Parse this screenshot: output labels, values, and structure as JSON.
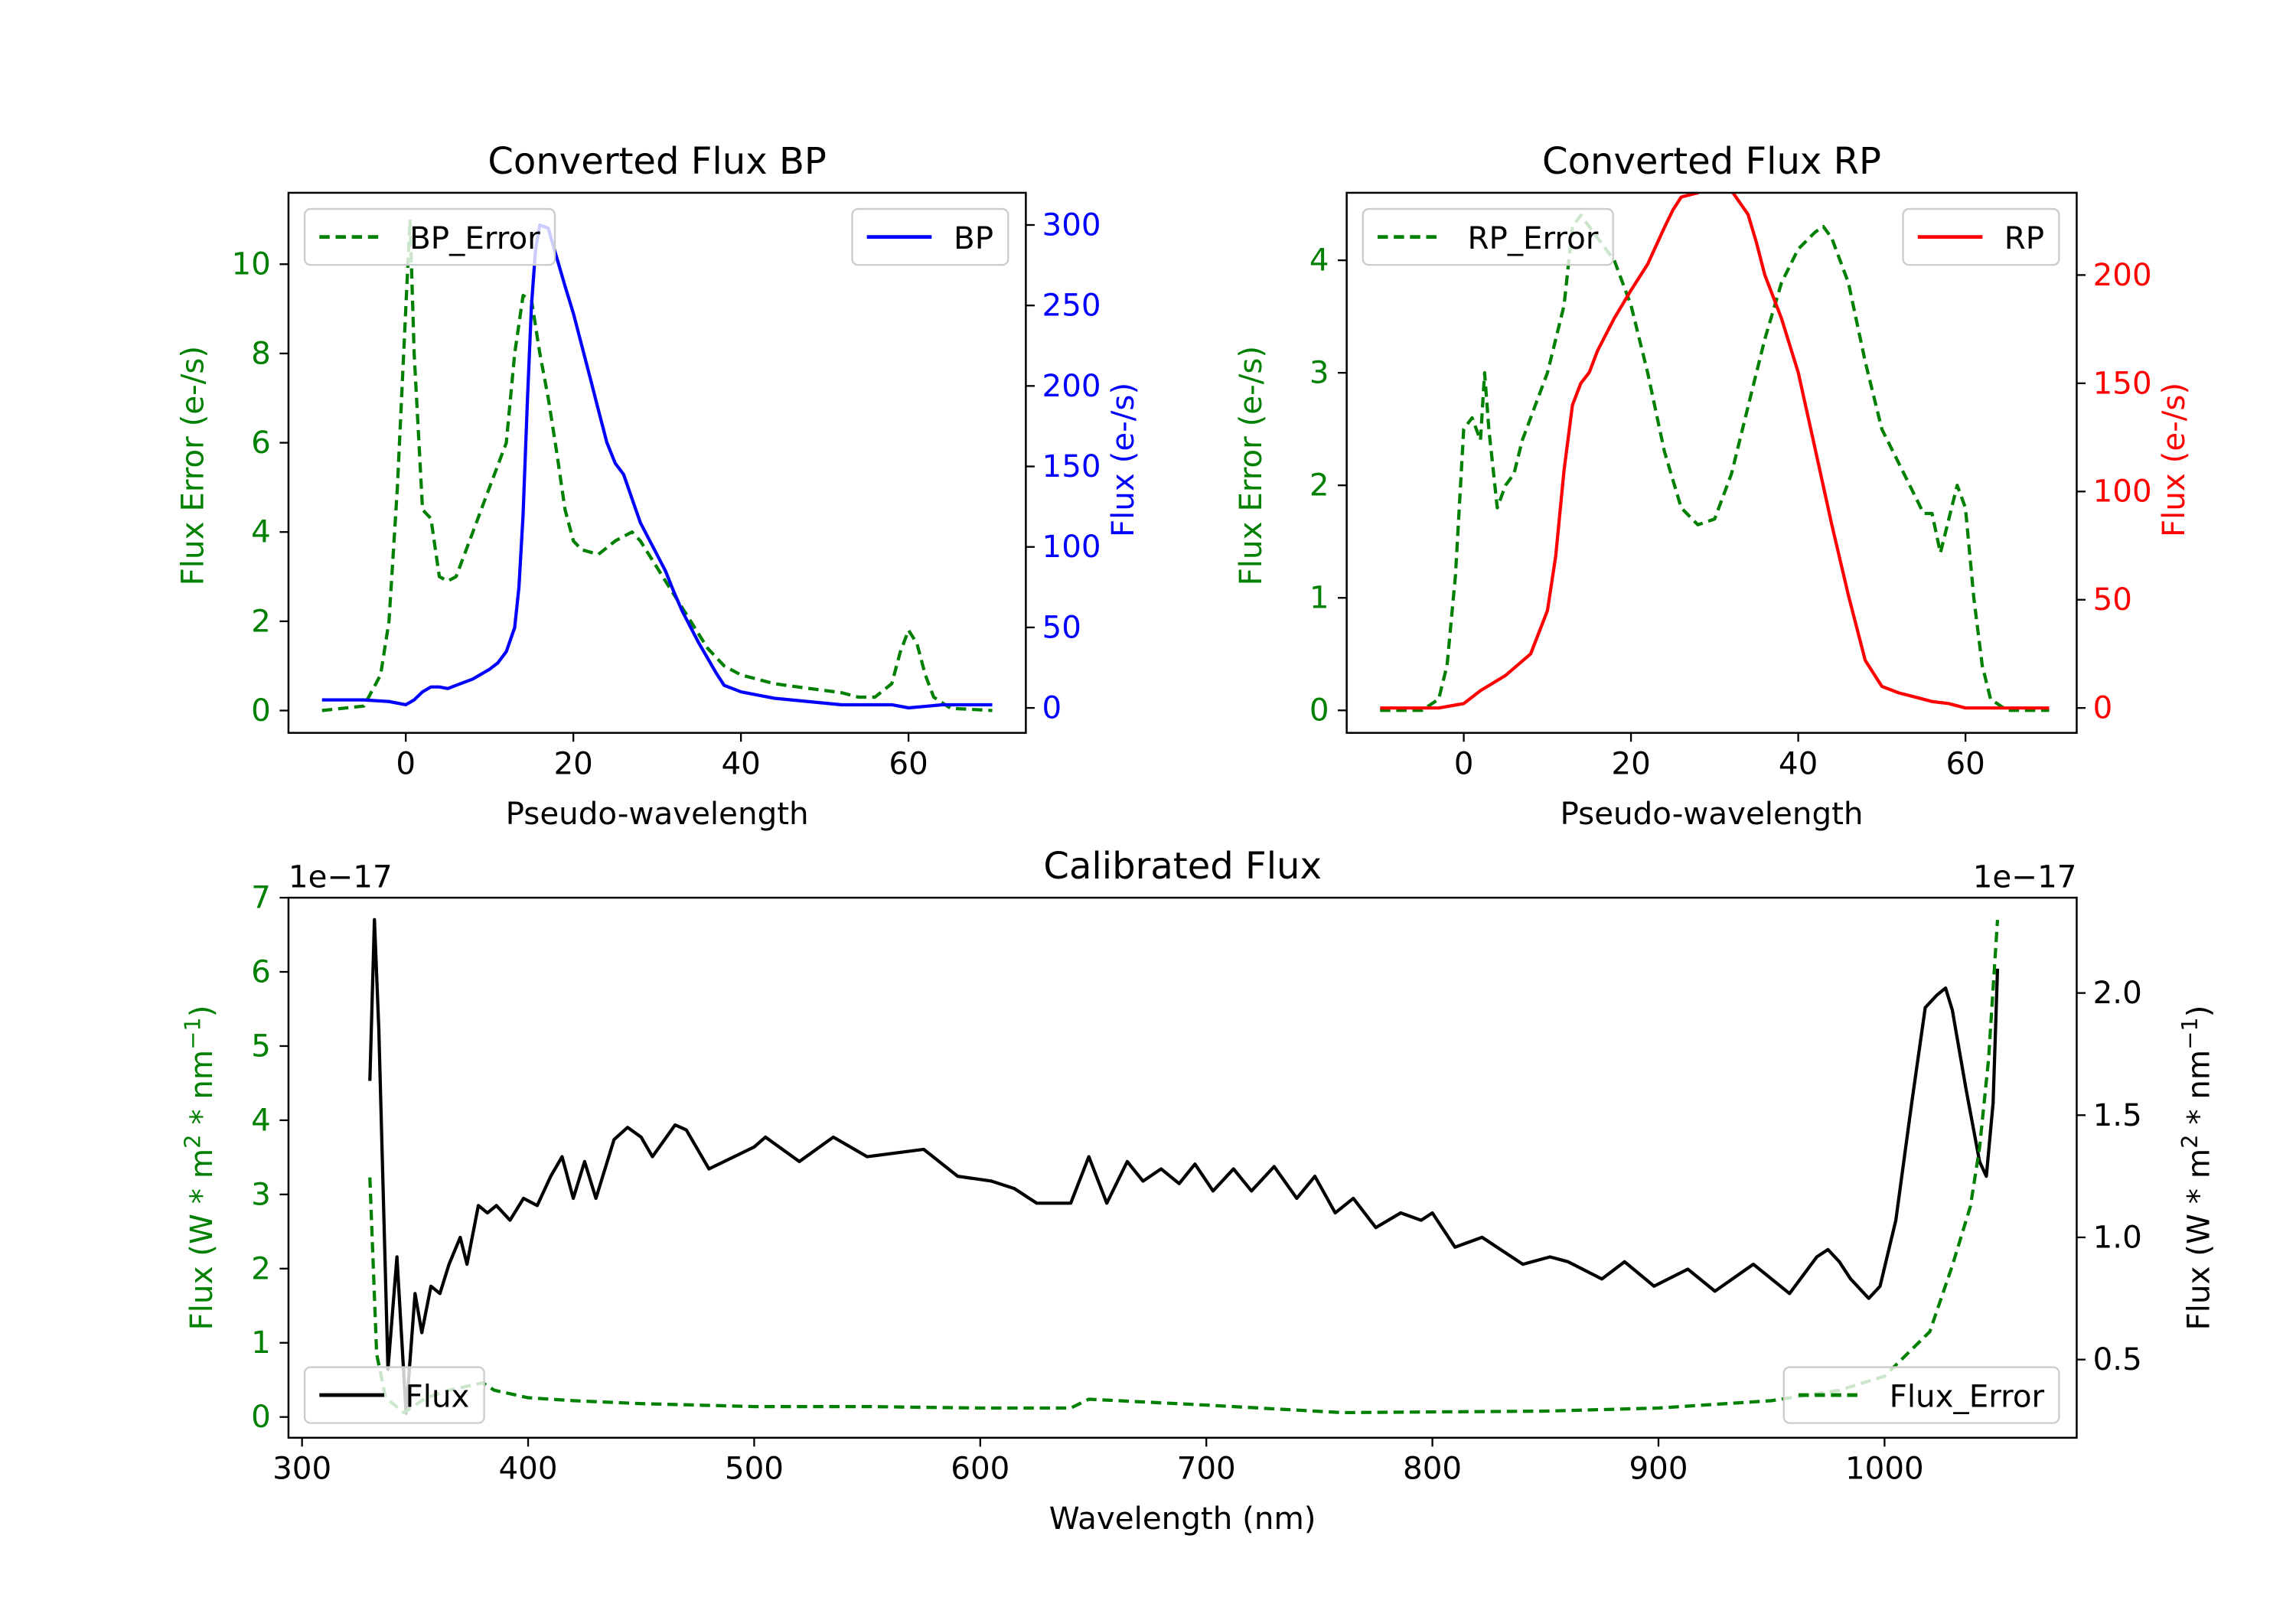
{
  "chart_data": [
    {
      "type": "line",
      "title": "Converted Flux BP",
      "xlabel": "Pseudo-wavelength",
      "ylabel": "Flux Error (e-/s)",
      "ylabel_right": "Flux (e-/s)",
      "xlim": [
        -14,
        74
      ],
      "ylim": [
        -0.5,
        11.6
      ],
      "ylim_right": [
        -15.5,
        320
      ],
      "xticks": [
        0,
        20,
        40,
        60
      ],
      "yticks": [
        0,
        2,
        4,
        6,
        8,
        10
      ],
      "yticks_right": [
        0,
        50,
        100,
        150,
        200,
        250,
        300
      ],
      "left_color": "#008000",
      "right_color": "#0000ff",
      "legend_left": {
        "label": "BP_Error",
        "placement": "upper left"
      },
      "legend_right": {
        "label": "BP",
        "placement": "upper right"
      },
      "series": [
        {
          "name": "BP_Error",
          "axis": "left",
          "color": "#008000",
          "style": "dashed",
          "x": [
            -10,
            -5,
            -3,
            -2,
            -1,
            0,
            0.5,
            1,
            2,
            3,
            4,
            5,
            6,
            8,
            10,
            12,
            13,
            14,
            15,
            16,
            17,
            18,
            19,
            20,
            21,
            23,
            25,
            27,
            28,
            30,
            32,
            34,
            36,
            38,
            40,
            42,
            44,
            46,
            48,
            50,
            52,
            54,
            56,
            58,
            59,
            60,
            61,
            62,
            63,
            65,
            70
          ],
          "y": [
            0,
            0.1,
            0.8,
            2,
            5,
            9,
            11,
            8,
            4.5,
            4.3,
            3,
            2.9,
            3,
            4,
            5,
            6,
            8,
            9.3,
            9.2,
            8,
            7,
            5.8,
            4.5,
            3.8,
            3.6,
            3.5,
            3.8,
            4,
            3.8,
            3.2,
            2.6,
            2,
            1.4,
            1,
            0.8,
            0.7,
            0.6,
            0.55,
            0.5,
            0.45,
            0.4,
            0.3,
            0.3,
            0.6,
            1.3,
            1.8,
            1.5,
            0.8,
            0.3,
            0.05,
            0
          ]
        },
        {
          "name": "BP",
          "axis": "right",
          "color": "#0000ff",
          "style": "solid",
          "x": [
            -10,
            -5,
            -2,
            0,
            1,
            2,
            3,
            4,
            5,
            6,
            8,
            10,
            11,
            12,
            13,
            13.5,
            14,
            14.5,
            15,
            15.5,
            16,
            17,
            18,
            19,
            20,
            21,
            22,
            23,
            24,
            25,
            26,
            27,
            28,
            30,
            31,
            32,
            33,
            35,
            37,
            38,
            40,
            42,
            44,
            46,
            48,
            50,
            52,
            54,
            56,
            58,
            60,
            62,
            64,
            70
          ],
          "y": [
            5,
            5,
            4,
            2,
            5,
            10,
            13,
            13,
            12,
            14,
            18,
            24,
            28,
            35,
            50,
            75,
            120,
            190,
            250,
            285,
            300,
            298,
            280,
            262,
            245,
            225,
            205,
            185,
            165,
            152,
            145,
            130,
            115,
            95,
            85,
            72,
            60,
            40,
            22,
            14,
            10,
            8,
            6,
            5,
            4,
            3,
            2,
            2,
            2,
            2,
            0,
            1,
            2,
            2
          ]
        }
      ]
    },
    {
      "type": "line",
      "title": "Converted Flux RP",
      "xlabel": "Pseudo-wavelength",
      "ylabel": "Flux Error (e-/s)",
      "ylabel_right": "Flux (e-/s)",
      "xlim": [
        -14,
        73.3
      ],
      "ylim": [
        -0.2,
        4.6
      ],
      "ylim_right": [
        -11.5,
        238
      ],
      "xticks": [
        0,
        20,
        40,
        60
      ],
      "yticks": [
        0,
        1,
        2,
        3,
        4
      ],
      "yticks_right": [
        0,
        50,
        100,
        150,
        200
      ],
      "left_color": "#008000",
      "right_color": "#ff0000",
      "legend_left": {
        "label": "RP_Error",
        "placement": "upper left"
      },
      "legend_right": {
        "label": "RP",
        "placement": "upper right"
      },
      "series": [
        {
          "name": "RP_Error",
          "axis": "left",
          "color": "#008000",
          "style": "dashed",
          "x": [
            -10,
            -5,
            -3,
            -2,
            -1,
            0,
            1,
            2,
            2.5,
            3,
            4,
            5,
            6,
            7,
            8,
            10,
            12,
            13,
            14,
            16,
            18,
            20,
            22,
            24,
            26,
            28,
            30,
            32,
            34,
            36,
            38,
            40,
            42,
            43,
            44,
            46,
            48,
            50,
            52,
            54,
            55,
            56,
            57,
            58,
            59,
            60,
            61,
            62,
            63,
            65,
            70
          ],
          "y": [
            0,
            0,
            0.1,
            0.4,
            1.2,
            2.5,
            2.6,
            2.4,
            3,
            2.5,
            1.8,
            2,
            2.1,
            2.4,
            2.6,
            3,
            3.6,
            4.3,
            4.4,
            4.2,
            4,
            3.6,
            3,
            2.3,
            1.8,
            1.65,
            1.7,
            2.1,
            2.7,
            3.3,
            3.8,
            4.1,
            4.25,
            4.3,
            4.2,
            3.8,
            3.1,
            2.5,
            2.2,
            1.9,
            1.75,
            1.75,
            1.4,
            1.7,
            2,
            1.8,
            1,
            0.4,
            0.1,
            0,
            0
          ]
        },
        {
          "name": "RP",
          "axis": "right",
          "color": "#ff0000",
          "style": "solid",
          "x": [
            -10,
            -3,
            0,
            2,
            5,
            8,
            10,
            11,
            12,
            13,
            14,
            15,
            16,
            18,
            20,
            22,
            24,
            25,
            26,
            28,
            29,
            30,
            32,
            34,
            35,
            36,
            38,
            40,
            42,
            44,
            46,
            48,
            50,
            52,
            54,
            56,
            58,
            60,
            62,
            70
          ],
          "y": [
            0,
            0,
            2,
            8,
            15,
            25,
            45,
            70,
            110,
            140,
            150,
            155,
            165,
            180,
            193,
            205,
            222,
            230,
            236,
            238,
            241,
            239,
            239,
            228,
            215,
            200,
            180,
            155,
            120,
            85,
            52,
            22,
            10,
            7,
            5,
            3,
            2,
            0,
            0,
            0
          ]
        }
      ]
    },
    {
      "type": "line",
      "title": "Calibrated Flux",
      "xlabel": "Wavelength (nm)",
      "ylabel": "Flux (W * m$^2$ * nm$^{-1}$)",
      "ylabel_right": "Flux (W * m$^2$ * nm$^{-1}$)",
      "ylabel_text": "Flux (W * m",
      "ylabel_sup1": "2",
      "ylabel_mid": " * nm",
      "ylabel_sup2": "−1",
      "ylabel_end": ")",
      "offset_left": "1e−17",
      "offset_right": "1e−17",
      "xlim": [
        294,
        1085
      ],
      "ylim": [
        -0.28,
        7.0
      ],
      "ylim_right": [
        0.18,
        2.39
      ],
      "xticks": [
        300,
        400,
        500,
        600,
        700,
        800,
        900,
        1000
      ],
      "yticks": [
        0,
        1,
        2,
        3,
        4,
        5,
        6,
        7
      ],
      "yticks_right": [
        "0.5",
        "1.0",
        "1.5",
        "2.0"
      ],
      "left_color": "#008000",
      "right_color": "#000000",
      "legend_left": {
        "label": "Flux",
        "placement": "lower left"
      },
      "legend_right": {
        "label": "Flux_Error",
        "placement": "lower right"
      },
      "series": [
        {
          "name": "Flux",
          "axis": "right",
          "color": "#000000",
          "style": "solid",
          "x": [
            330,
            332,
            334,
            338,
            342,
            346,
            350,
            353,
            357,
            361,
            365,
            370,
            373,
            378,
            382,
            386,
            392,
            398,
            404,
            410,
            415,
            420,
            425,
            430,
            438,
            444,
            450,
            455,
            465,
            470,
            480,
            500,
            505,
            520,
            535,
            550,
            575,
            590,
            605,
            615,
            625,
            640,
            648,
            656,
            665,
            672,
            680,
            688,
            695,
            703,
            712,
            720,
            730,
            740,
            748,
            757,
            765,
            775,
            786,
            795,
            800,
            810,
            822,
            840,
            852,
            860,
            875,
            885,
            898,
            913,
            925,
            942,
            958,
            970,
            975,
            980,
            985,
            993,
            998,
            1005,
            1012,
            1018,
            1023,
            1027,
            1030,
            1036,
            1042,
            1045,
            1048,
            1050
          ],
          "y": [
            1.64,
            2.3,
            1.85,
            0.46,
            0.92,
            0.28,
            0.77,
            0.61,
            0.8,
            0.77,
            0.89,
            1.0,
            0.89,
            1.13,
            1.1,
            1.13,
            1.07,
            1.16,
            1.13,
            1.25,
            1.33,
            1.16,
            1.31,
            1.16,
            1.4,
            1.45,
            1.41,
            1.33,
            1.46,
            1.44,
            1.28,
            1.37,
            1.41,
            1.31,
            1.41,
            1.33,
            1.36,
            1.25,
            1.23,
            1.2,
            1.14,
            1.14,
            1.33,
            1.14,
            1.31,
            1.23,
            1.28,
            1.22,
            1.3,
            1.19,
            1.28,
            1.19,
            1.29,
            1.16,
            1.25,
            1.1,
            1.16,
            1.04,
            1.1,
            1.07,
            1.1,
            0.96,
            1.0,
            0.89,
            0.92,
            0.9,
            0.83,
            0.9,
            0.8,
            0.87,
            0.78,
            0.89,
            0.77,
            0.92,
            0.95,
            0.9,
            0.83,
            0.75,
            0.8,
            1.07,
            1.55,
            1.94,
            1.99,
            2.02,
            1.93,
            1.61,
            1.31,
            1.25,
            1.55,
            2.1
          ]
        },
        {
          "name": "Flux_Error",
          "axis": "left",
          "color": "#008000",
          "style": "dashed",
          "x": [
            330,
            333,
            337,
            345,
            355,
            365,
            380,
            385,
            400,
            420,
            450,
            500,
            550,
            600,
            640,
            648,
            700,
            760,
            850,
            900,
            950,
            980,
            1000,
            1020,
            1030,
            1038,
            1042,
            1046,
            1050
          ],
          "y": [
            3.23,
            0.85,
            0.26,
            0.06,
            0.26,
            0.36,
            0.46,
            0.36,
            0.26,
            0.22,
            0.18,
            0.14,
            0.14,
            0.12,
            0.12,
            0.24,
            0.16,
            0.06,
            0.08,
            0.12,
            0.22,
            0.36,
            0.55,
            1.15,
            2.04,
            2.84,
            3.63,
            4.82,
            6.7
          ]
        }
      ]
    }
  ]
}
